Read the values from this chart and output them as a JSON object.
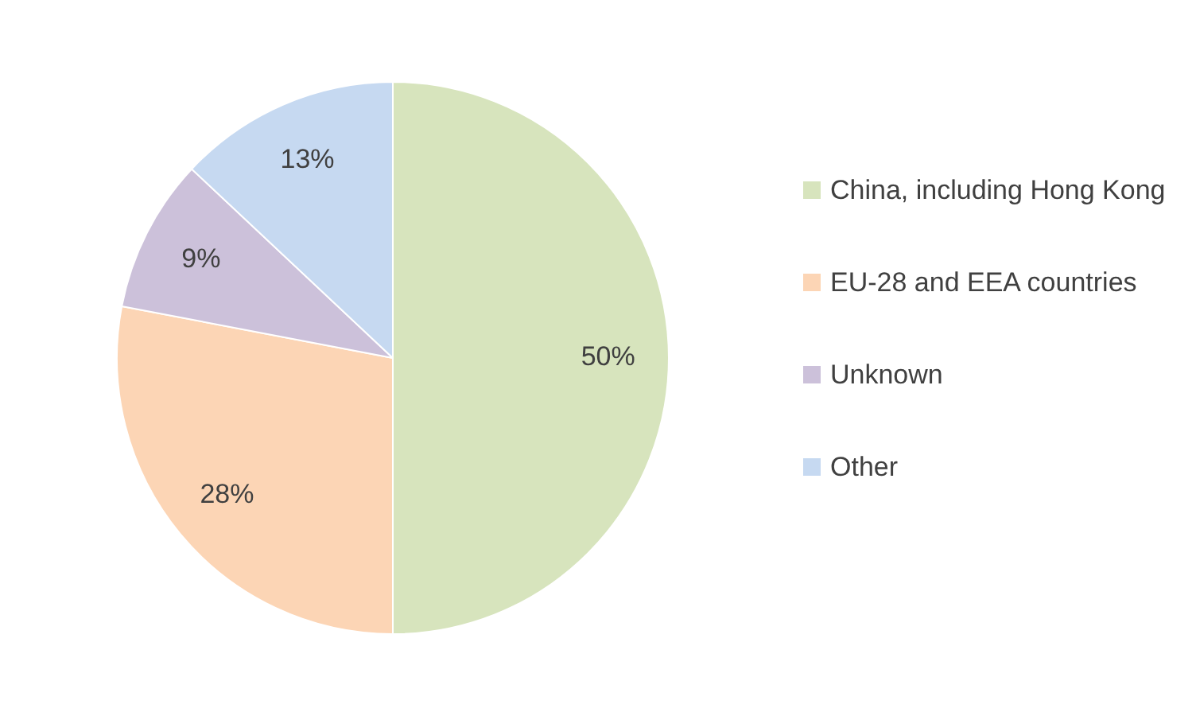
{
  "chart_data": {
    "type": "pie",
    "categories": [
      "China, including Hong Kong",
      "EU-28 and EEA countries",
      "Unknown",
      "Other"
    ],
    "values": [
      50,
      28,
      9,
      13
    ],
    "colors": [
      "#d7e4bd",
      "#fcd5b5",
      "#ccc1da",
      "#c6d9f1"
    ],
    "value_labels": [
      "50%",
      "28%",
      "9%",
      "13%"
    ],
    "legend": "right"
  }
}
